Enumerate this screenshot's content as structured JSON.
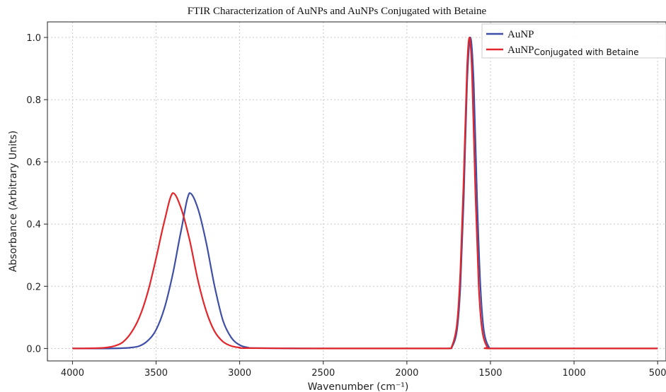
{
  "chart_data": {
    "type": "line",
    "title": "FTIR Characterization of AuNPs and AuNPs Conjugated with Betaine",
    "xlabel": "Wavenumber (cm⁻¹)",
    "ylabel": "Absorbance (Arbitrary Units)",
    "xlim": [
      4150,
      450
    ],
    "ylim": [
      -0.04,
      1.05
    ],
    "x_reversed": true,
    "grid": true,
    "legend_position": "top-right",
    "xticks": [
      4000,
      3500,
      3000,
      2500,
      2000,
      1500,
      1000,
      500
    ],
    "xtick_labels": [
      "4000",
      "3500",
      "3000",
      "2500",
      "2000",
      "1500",
      "1000",
      "500"
    ],
    "yticks": [
      0.0,
      0.2,
      0.4,
      0.6,
      0.8,
      1.0
    ],
    "ytick_labels": [
      "0.0",
      "0.2",
      "0.4",
      "0.6",
      "0.8",
      "1.0"
    ],
    "series": [
      {
        "name": "AuNP",
        "color": "#3f4ea6",
        "x": [
          4000,
          3800,
          3700,
          3650,
          3600,
          3550,
          3500,
          3450,
          3400,
          3350,
          3300,
          3250,
          3200,
          3150,
          3100,
          3050,
          3000,
          2950,
          2900,
          2500,
          2000,
          1760,
          1730,
          1700,
          1680,
          1660,
          1640,
          1620,
          1600,
          1580,
          1560,
          1540,
          1510,
          1480,
          1000,
          500
        ],
        "y": [
          0.0,
          0.0,
          0.001,
          0.003,
          0.008,
          0.025,
          0.06,
          0.13,
          0.24,
          0.38,
          0.5,
          0.45,
          0.34,
          0.2,
          0.09,
          0.035,
          0.011,
          0.003,
          0.001,
          0.0,
          0.0,
          0.0,
          0.005,
          0.06,
          0.2,
          0.48,
          0.85,
          1.0,
          0.85,
          0.48,
          0.2,
          0.06,
          0.005,
          0.0,
          0.0,
          0.0
        ]
      },
      {
        "name": "AuNP",
        "name_suffix": "Conjugated with Betaine",
        "color": "#e3262b",
        "x": [
          4000,
          3850,
          3800,
          3750,
          3700,
          3650,
          3600,
          3550,
          3500,
          3450,
          3400,
          3350,
          3300,
          3250,
          3200,
          3150,
          3100,
          3050,
          3000,
          2950,
          2500,
          2000,
          1760,
          1730,
          1700,
          1680,
          1660,
          1640,
          1625,
          1610,
          1590,
          1570,
          1550,
          1520,
          1490,
          1000,
          500
        ],
        "y": [
          0.0,
          0.001,
          0.003,
          0.008,
          0.02,
          0.05,
          0.1,
          0.18,
          0.29,
          0.41,
          0.5,
          0.45,
          0.35,
          0.22,
          0.12,
          0.055,
          0.022,
          0.008,
          0.003,
          0.001,
          0.0,
          0.0,
          0.0,
          0.008,
          0.08,
          0.25,
          0.55,
          0.9,
          1.0,
          0.88,
          0.5,
          0.2,
          0.06,
          0.005,
          0.0,
          0.0,
          0.0
        ]
      }
    ]
  }
}
